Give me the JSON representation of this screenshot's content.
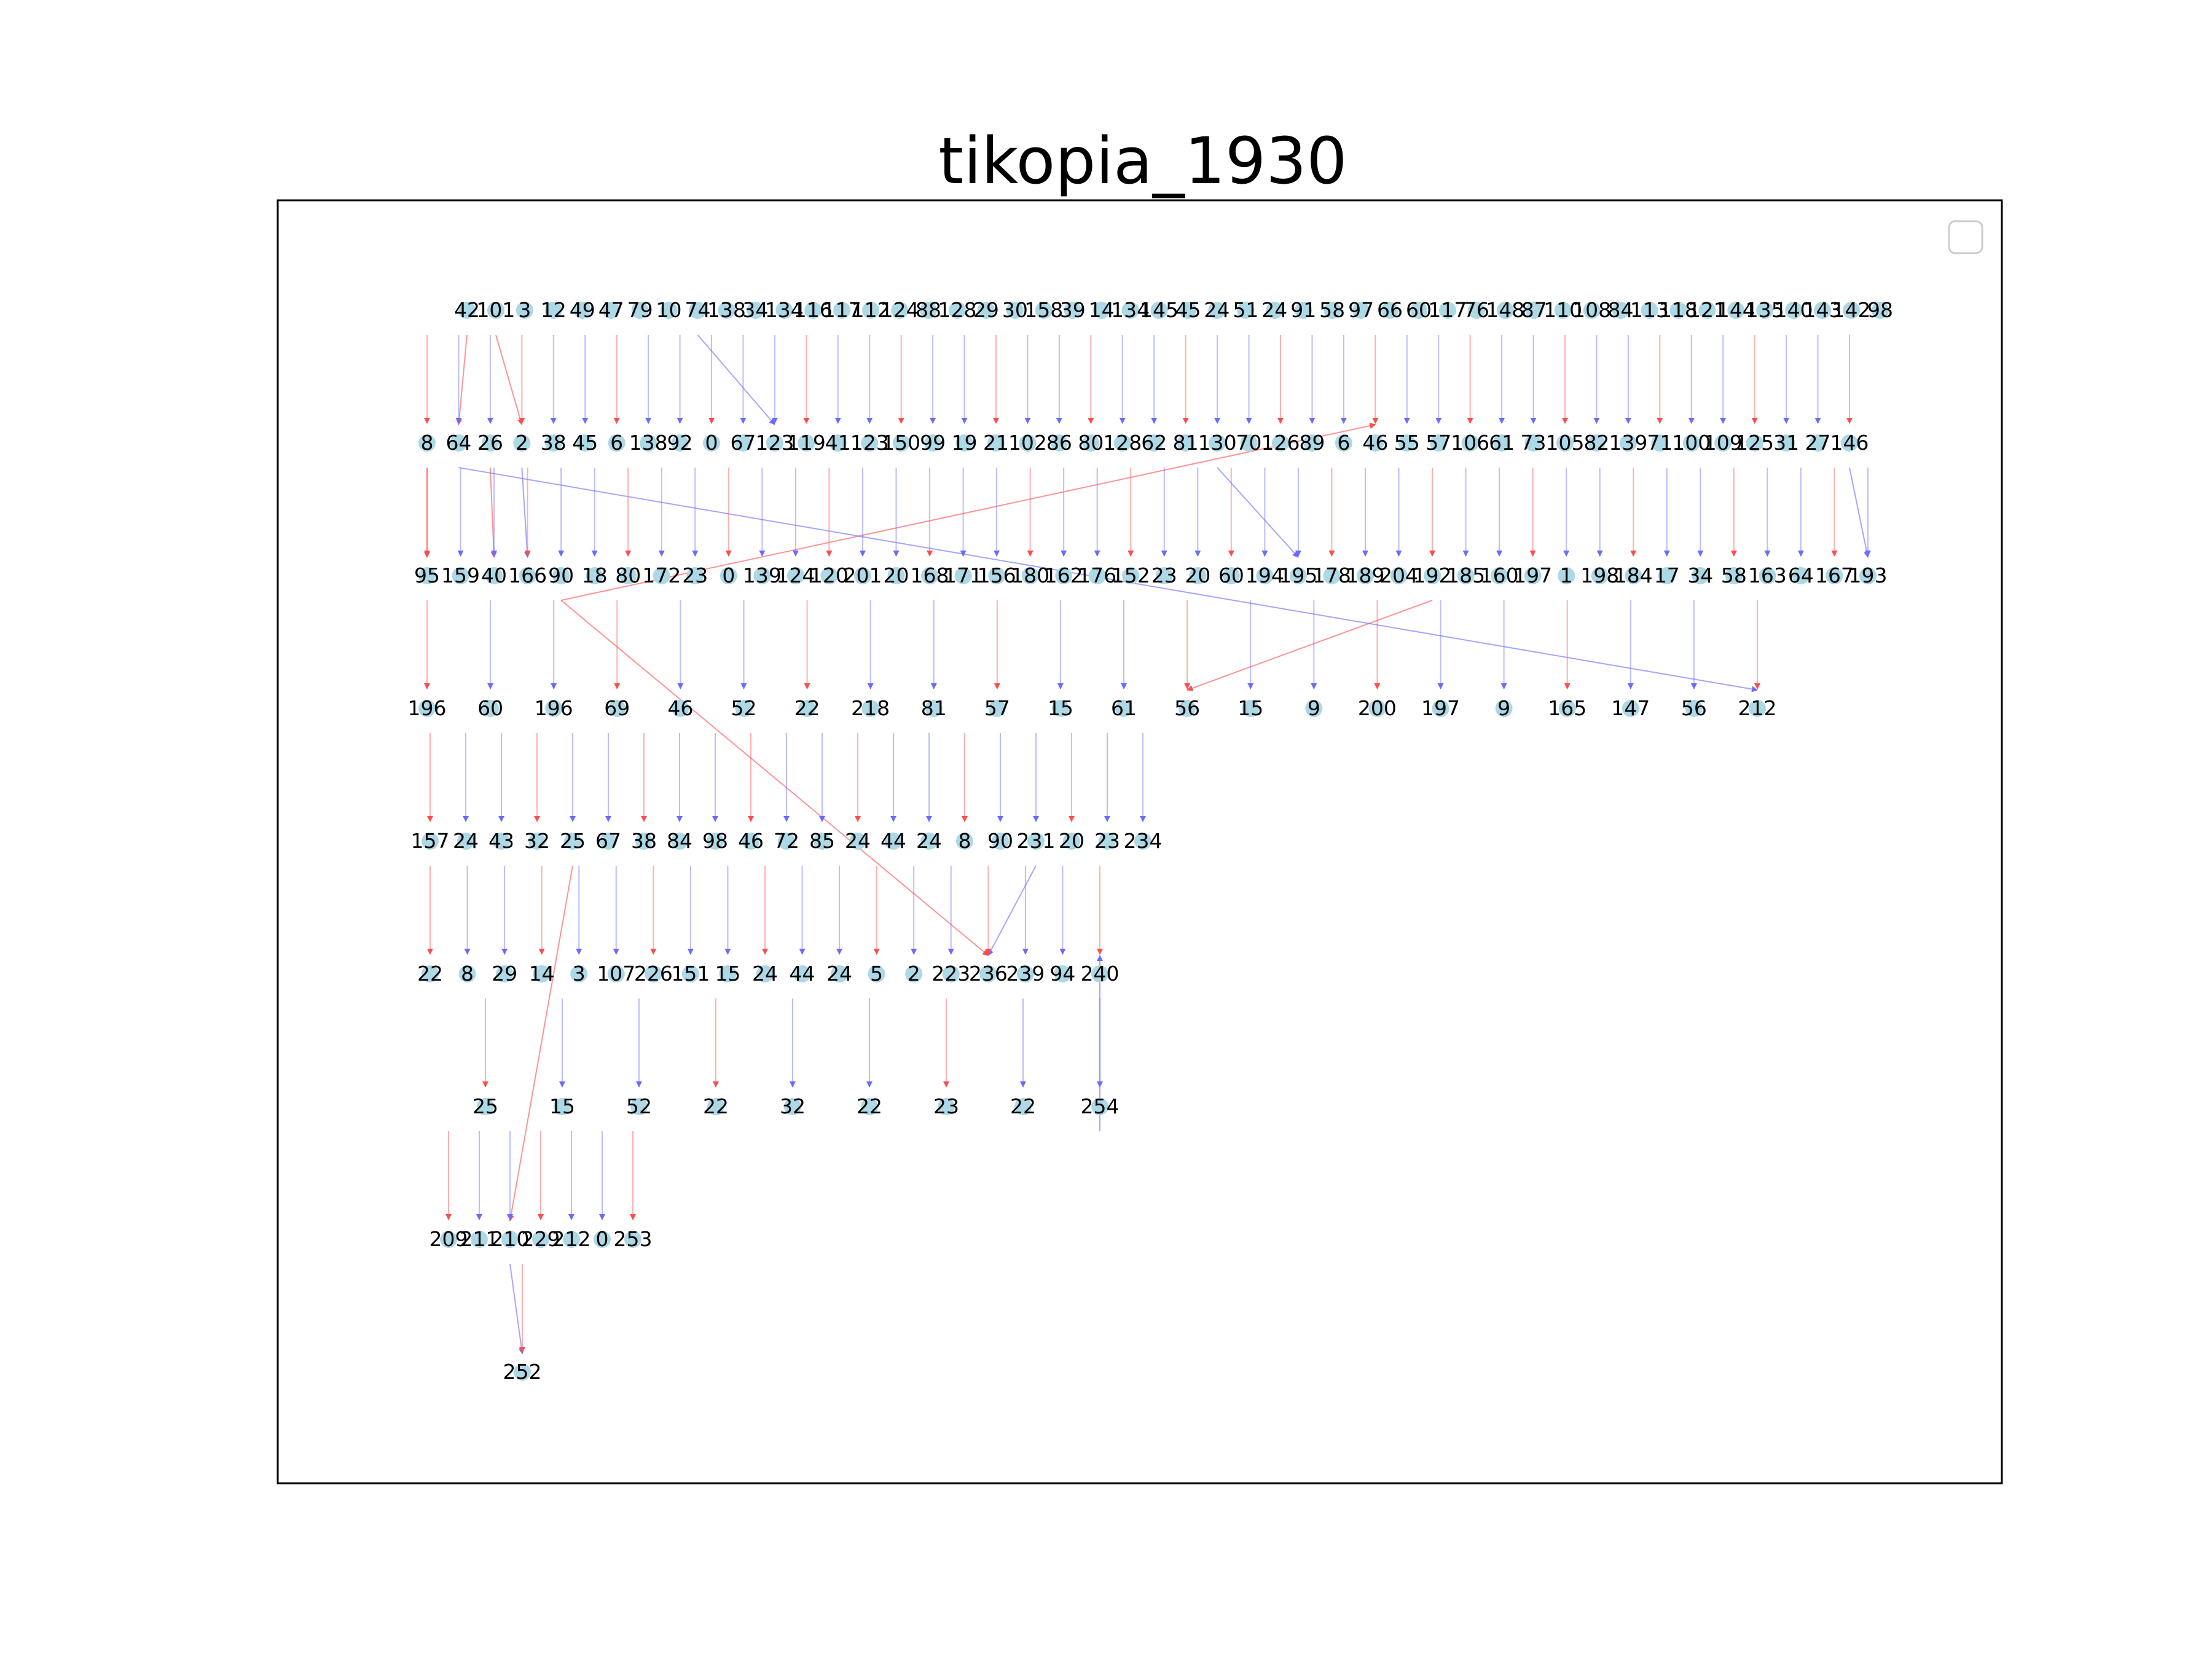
{
  "title": "tikopia_1930",
  "colors": {
    "node": "#add8e6",
    "edge_blue": "#6b6bff",
    "edge_red": "#ff4d4d",
    "frame": "#000000",
    "background": "#ffffff"
  },
  "legend": {
    "entries": [],
    "placement": "top-right"
  },
  "levels": [
    [
      "42",
      "101",
      "3",
      "12",
      "49",
      "47",
      "79",
      "10",
      "74",
      "138",
      "34",
      "134",
      "116",
      "117",
      "112",
      "124",
      "88",
      "128",
      "29",
      "30",
      "158",
      "39",
      "14",
      "134",
      "145",
      "45",
      "24",
      "51",
      "24",
      "91",
      "58",
      "97",
      "66",
      "60",
      "117",
      "76",
      "148",
      "87",
      "110",
      "108",
      "84",
      "113",
      "118",
      "121",
      "144",
      "135",
      "140",
      "143",
      "142",
      "98"
    ],
    [
      "8",
      "64",
      "26",
      "2",
      "38",
      "45",
      "6",
      "138",
      "92",
      "0",
      "67",
      "123",
      "119",
      "41",
      "123",
      "150",
      "99",
      "19",
      "21",
      "102",
      "86",
      "80",
      "128",
      "62",
      "81",
      "130",
      "70",
      "126",
      "89",
      "6",
      "46",
      "55",
      "57",
      "106",
      "61",
      "73",
      "105",
      "82",
      "139",
      "71",
      "100",
      "109",
      "125",
      "31",
      "27",
      "146"
    ],
    [
      "95",
      "159",
      "40",
      "166",
      "90",
      "18",
      "80",
      "172",
      "23",
      "0",
      "139",
      "124",
      "120",
      "201",
      "20",
      "168",
      "171",
      "156",
      "180",
      "162",
      "176",
      "152",
      "23",
      "20",
      "60",
      "194",
      "195",
      "178",
      "189",
      "204",
      "192",
      "185",
      "160",
      "197",
      "1",
      "198",
      "184",
      "17",
      "34",
      "58",
      "163",
      "64",
      "167",
      "193"
    ],
    [
      "196",
      "60",
      "196",
      "69",
      "46",
      "52",
      "22",
      "218",
      "81",
      "57",
      "15",
      "61",
      "56",
      "15",
      "9",
      "200",
      "197",
      "9",
      "165",
      "147",
      "56",
      "212"
    ],
    [
      "157",
      "24",
      "43",
      "32",
      "25",
      "67",
      "38",
      "84",
      "98",
      "46",
      "72",
      "85",
      "24",
      "44",
      "24",
      "8",
      "90",
      "231",
      "20",
      "23",
      "234"
    ],
    [
      "22",
      "8",
      "29",
      "14",
      "3",
      "107",
      "226",
      "151",
      "15",
      "24",
      "44",
      "24",
      "5",
      "2",
      "223",
      "236",
      "239",
      "94",
      "240"
    ],
    [
      "25",
      "15",
      "52",
      "22",
      "32",
      "22",
      "23",
      "22",
      "254"
    ],
    [
      "209",
      "211",
      "210",
      "229",
      "212",
      "0",
      "253"
    ],
    [
      "252"
    ]
  ],
  "edges": [
    {
      "from": "42",
      "to": "64",
      "color": "red"
    },
    {
      "from": "101",
      "to": "2",
      "color": "red"
    },
    {
      "from": "8",
      "to": "95",
      "color": "red"
    },
    {
      "from": "26",
      "to": "40",
      "color": "red"
    },
    {
      "from": "2",
      "to": "166",
      "color": "blue"
    },
    {
      "from": "90",
      "to": "46",
      "color": "red"
    },
    {
      "from": "74",
      "to": "123",
      "color": "blue"
    },
    {
      "from": "130",
      "to": "195",
      "color": "blue"
    },
    {
      "from": "146",
      "to": "193",
      "color": "blue"
    },
    {
      "from": "192",
      "to": "56",
      "color": "red"
    },
    {
      "from": "64",
      "to": "212",
      "color": "blue"
    },
    {
      "from": "231",
      "to": "236",
      "color": "blue"
    },
    {
      "from": "90",
      "to": "236",
      "color": "red"
    },
    {
      "from": "254",
      "to": "240",
      "color": "blue"
    },
    {
      "from": "210",
      "to": "252",
      "color": "blue"
    },
    {
      "from": "25",
      "to": "210",
      "color": "red"
    }
  ]
}
